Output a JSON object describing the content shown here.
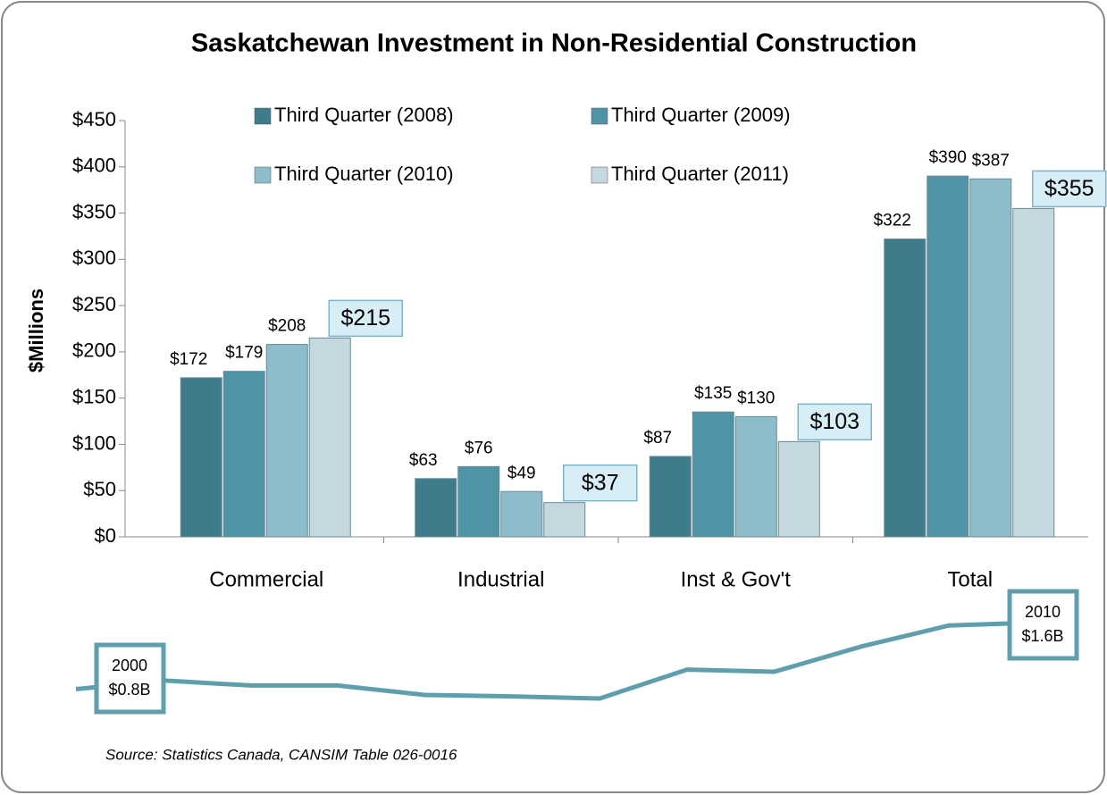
{
  "chart_data": [
    {
      "type": "bar",
      "title": "Saskatchewan Investment in Non-Residential Construction",
      "y_label": "$Millions",
      "categories": [
        "Commercial",
        "Industrial",
        "Inst & Gov't",
        "Total"
      ],
      "series": [
        {
          "name": "Third Quarter (2008)",
          "color": "#3e7c8c",
          "values": [
            172,
            63,
            87,
            322
          ],
          "value_labels": [
            "$172",
            "$63",
            "$87",
            "$322"
          ]
        },
        {
          "name": "Third Quarter (2009)",
          "color": "#4f93a7",
          "values": [
            179,
            76,
            135,
            390
          ],
          "value_labels": [
            "$179",
            "$76",
            "$135",
            "$390"
          ]
        },
        {
          "name": "Third Quarter (2010)",
          "color": "#8dbccb",
          "values": [
            208,
            49,
            130,
            387
          ],
          "value_labels": [
            "$208",
            "$49",
            "$130",
            "$387"
          ]
        },
        {
          "name": "Third Quarter (2011)",
          "color": "#c6d8df",
          "values": [
            215,
            37,
            103,
            355
          ],
          "value_labels": [
            "$215",
            "$37",
            "$103",
            "$355"
          ]
        }
      ],
      "ylim": [
        0,
        450
      ],
      "yticks": [
        {
          "value": 0,
          "label": "$0"
        },
        {
          "value": 50,
          "label": "$50"
        },
        {
          "value": 100,
          "label": "$100"
        },
        {
          "value": 150,
          "label": "$150"
        },
        {
          "value": 200,
          "label": "$200"
        },
        {
          "value": 250,
          "label": "$250"
        },
        {
          "value": 300,
          "label": "$300"
        },
        {
          "value": 350,
          "label": "$350"
        },
        {
          "value": 400,
          "label": "$400"
        },
        {
          "value": 450,
          "label": "$450"
        }
      ]
    },
    {
      "type": "line",
      "color": "#5f9fad",
      "categories": [
        null,
        "2000",
        null,
        null,
        null,
        null,
        null,
        null,
        null,
        null,
        null,
        "2010"
      ],
      "values": [
        0.68,
        0.8,
        0.73,
        0.73,
        0.6,
        0.58,
        0.55,
        0.95,
        0.92,
        1.27,
        1.56,
        1.6
      ],
      "value_labels": [
        null,
        "$0.8B",
        null,
        null,
        null,
        null,
        null,
        null,
        null,
        null,
        null,
        "$1.6B"
      ],
      "source": "Source: Statistics Canada,  CANSIM Table 026-0016"
    }
  ]
}
